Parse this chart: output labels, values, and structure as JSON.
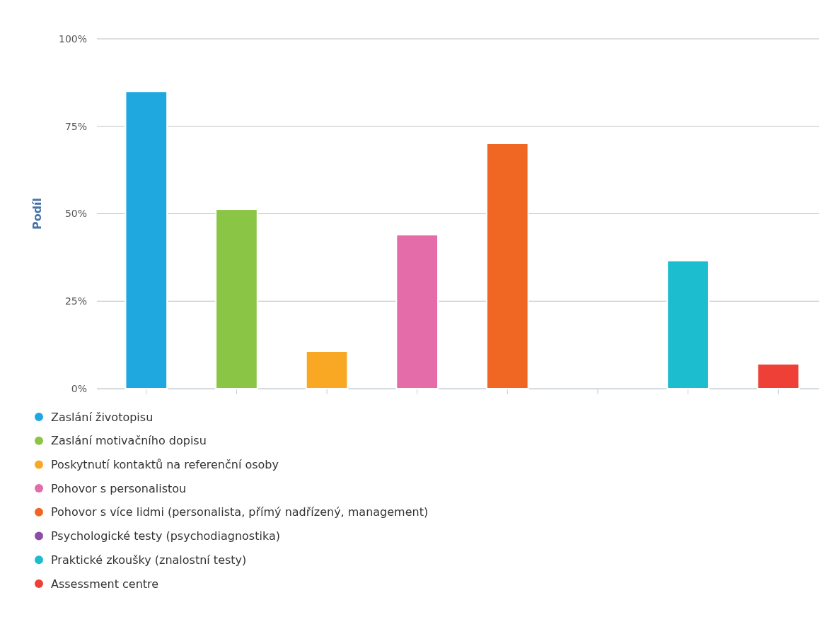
{
  "chart_data": {
    "type": "bar",
    "ylabel": "Podíl",
    "categories": [
      null,
      null,
      null,
      null,
      null,
      null,
      null,
      null
    ],
    "series": [
      {
        "name": "Zaslání životopisu",
        "color": "#1fa8df",
        "values": [
          85,
          null,
          null,
          null,
          null,
          null,
          null,
          null
        ]
      },
      {
        "name": "Zaslání motivačního dopisu",
        "color": "#8bc546",
        "values": [
          null,
          51.3,
          null,
          null,
          null,
          null,
          null,
          null
        ]
      },
      {
        "name": "Poskytnutí kontaktů na referenční osoby",
        "color": "#f9a824",
        "values": [
          null,
          null,
          10.7,
          null,
          null,
          null,
          null,
          null
        ]
      },
      {
        "name": "Pohovor s personalistou",
        "color": "#e46ca8",
        "values": [
          null,
          null,
          null,
          44,
          null,
          null,
          null,
          null
        ]
      },
      {
        "name": "Pohovor s více lidmi (personalista, přímý nadřízený, management)",
        "color": "#f06724",
        "values": [
          null,
          null,
          null,
          null,
          70.1,
          null,
          null,
          null
        ]
      },
      {
        "name": "Psychologické testy (psychodiagnostika)",
        "color": "#8e4ca8",
        "values": [
          null,
          null,
          null,
          null,
          null,
          0,
          null,
          null
        ]
      },
      {
        "name": "Praktické zkoušky (znalostní testy)",
        "color": "#1cbdce",
        "values": [
          null,
          null,
          null,
          null,
          null,
          null,
          36.6,
          null
        ]
      },
      {
        "name": "Assessment centre",
        "color": "#ee4036",
        "values": [
          null,
          null,
          null,
          null,
          null,
          null,
          null,
          7.1
        ]
      }
    ],
    "ylim": [
      0,
      100
    ],
    "yticks": [
      {
        "value": 0,
        "label": "0%"
      },
      {
        "value": 25,
        "label": "25%"
      },
      {
        "value": 50,
        "label": "50%"
      },
      {
        "value": 75,
        "label": "75%"
      },
      {
        "value": 100,
        "label": "100%"
      }
    ],
    "grid": "y",
    "legend": "bottom"
  }
}
